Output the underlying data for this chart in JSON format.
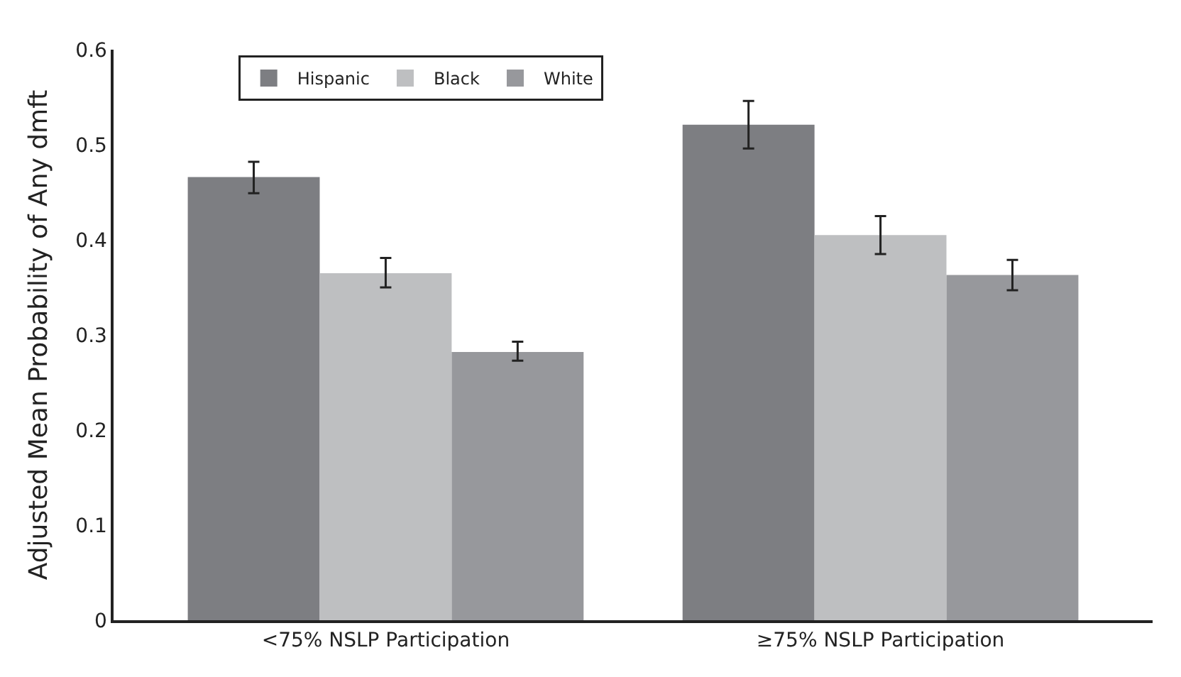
{
  "chart_data": {
    "type": "bar",
    "ylabel": "Adjusted Mean Probability of Any dmft",
    "categories": [
      "<75% NSLP Participation",
      "≥75% NSLP Participation"
    ],
    "series": [
      {
        "name": "Hispanic",
        "color": "#7d7e82",
        "values": [
          0.466,
          0.521
        ],
        "errors": [
          [
            0.449,
            0.482
          ],
          [
            0.496,
            0.546
          ]
        ]
      },
      {
        "name": "Black",
        "color": "#bebfc1",
        "values": [
          0.365,
          0.405
        ],
        "errors": [
          [
            0.35,
            0.381
          ],
          [
            0.385,
            0.425
          ]
        ]
      },
      {
        "name": "White",
        "color": "#97989c",
        "values": [
          0.282,
          0.363
        ],
        "errors": [
          [
            0.273,
            0.293
          ],
          [
            0.347,
            0.379
          ]
        ]
      }
    ],
    "ylim": [
      0,
      0.6
    ],
    "yticks": [
      0,
      0.1,
      0.2,
      0.3,
      0.4,
      0.5,
      0.6
    ],
    "legend": "top left"
  }
}
